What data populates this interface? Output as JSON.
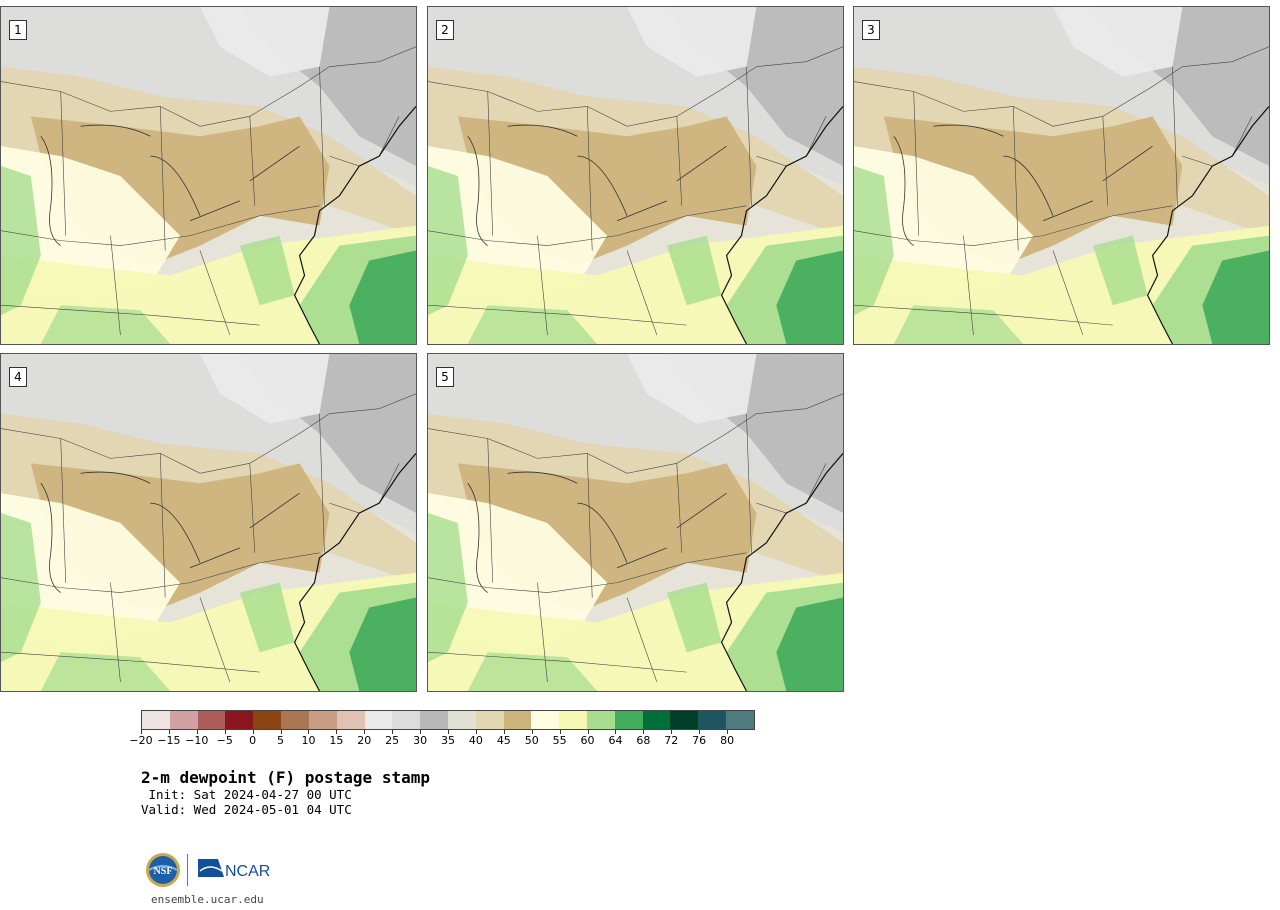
{
  "title": "2-m dewpoint (F) postage stamp",
  "init_line": " Init: Sat 2024-04-27 00 UTC",
  "valid_line": "Valid: Wed 2024-05-01 04 UTC",
  "site": "ensemble.ucar.edu",
  "logos": {
    "nsf_text": "NSF",
    "ncar_text": "NCAR"
  },
  "panels": [
    {
      "label": "1"
    },
    {
      "label": "2"
    },
    {
      "label": "3"
    },
    {
      "label": "4"
    },
    {
      "label": "5"
    }
  ],
  "colorbar": {
    "colors": [
      "#efe4e4",
      "#d2a1a1",
      "#ae5b5b",
      "#8a1620",
      "#8b4513",
      "#aa7552",
      "#c79c82",
      "#dfc2b3",
      "#eaeaea",
      "#dcdcdc",
      "#b8b8b8",
      "#e0e0d4",
      "#e2d5b1",
      "#cdb37c",
      "#fffde0",
      "#f5f9b4",
      "#a8dd90",
      "#40ac5c",
      "#00703a",
      "#00402a",
      "#1e5660",
      "#4e7b80"
    ],
    "tick_labels": [
      "−20",
      "−15",
      "−10",
      "−5",
      "0",
      "5",
      "10",
      "15",
      "20",
      "25",
      "30",
      "35",
      "40",
      "45",
      "50",
      "55",
      "60",
      "64",
      "68",
      "72",
      "76",
      "80"
    ]
  }
}
